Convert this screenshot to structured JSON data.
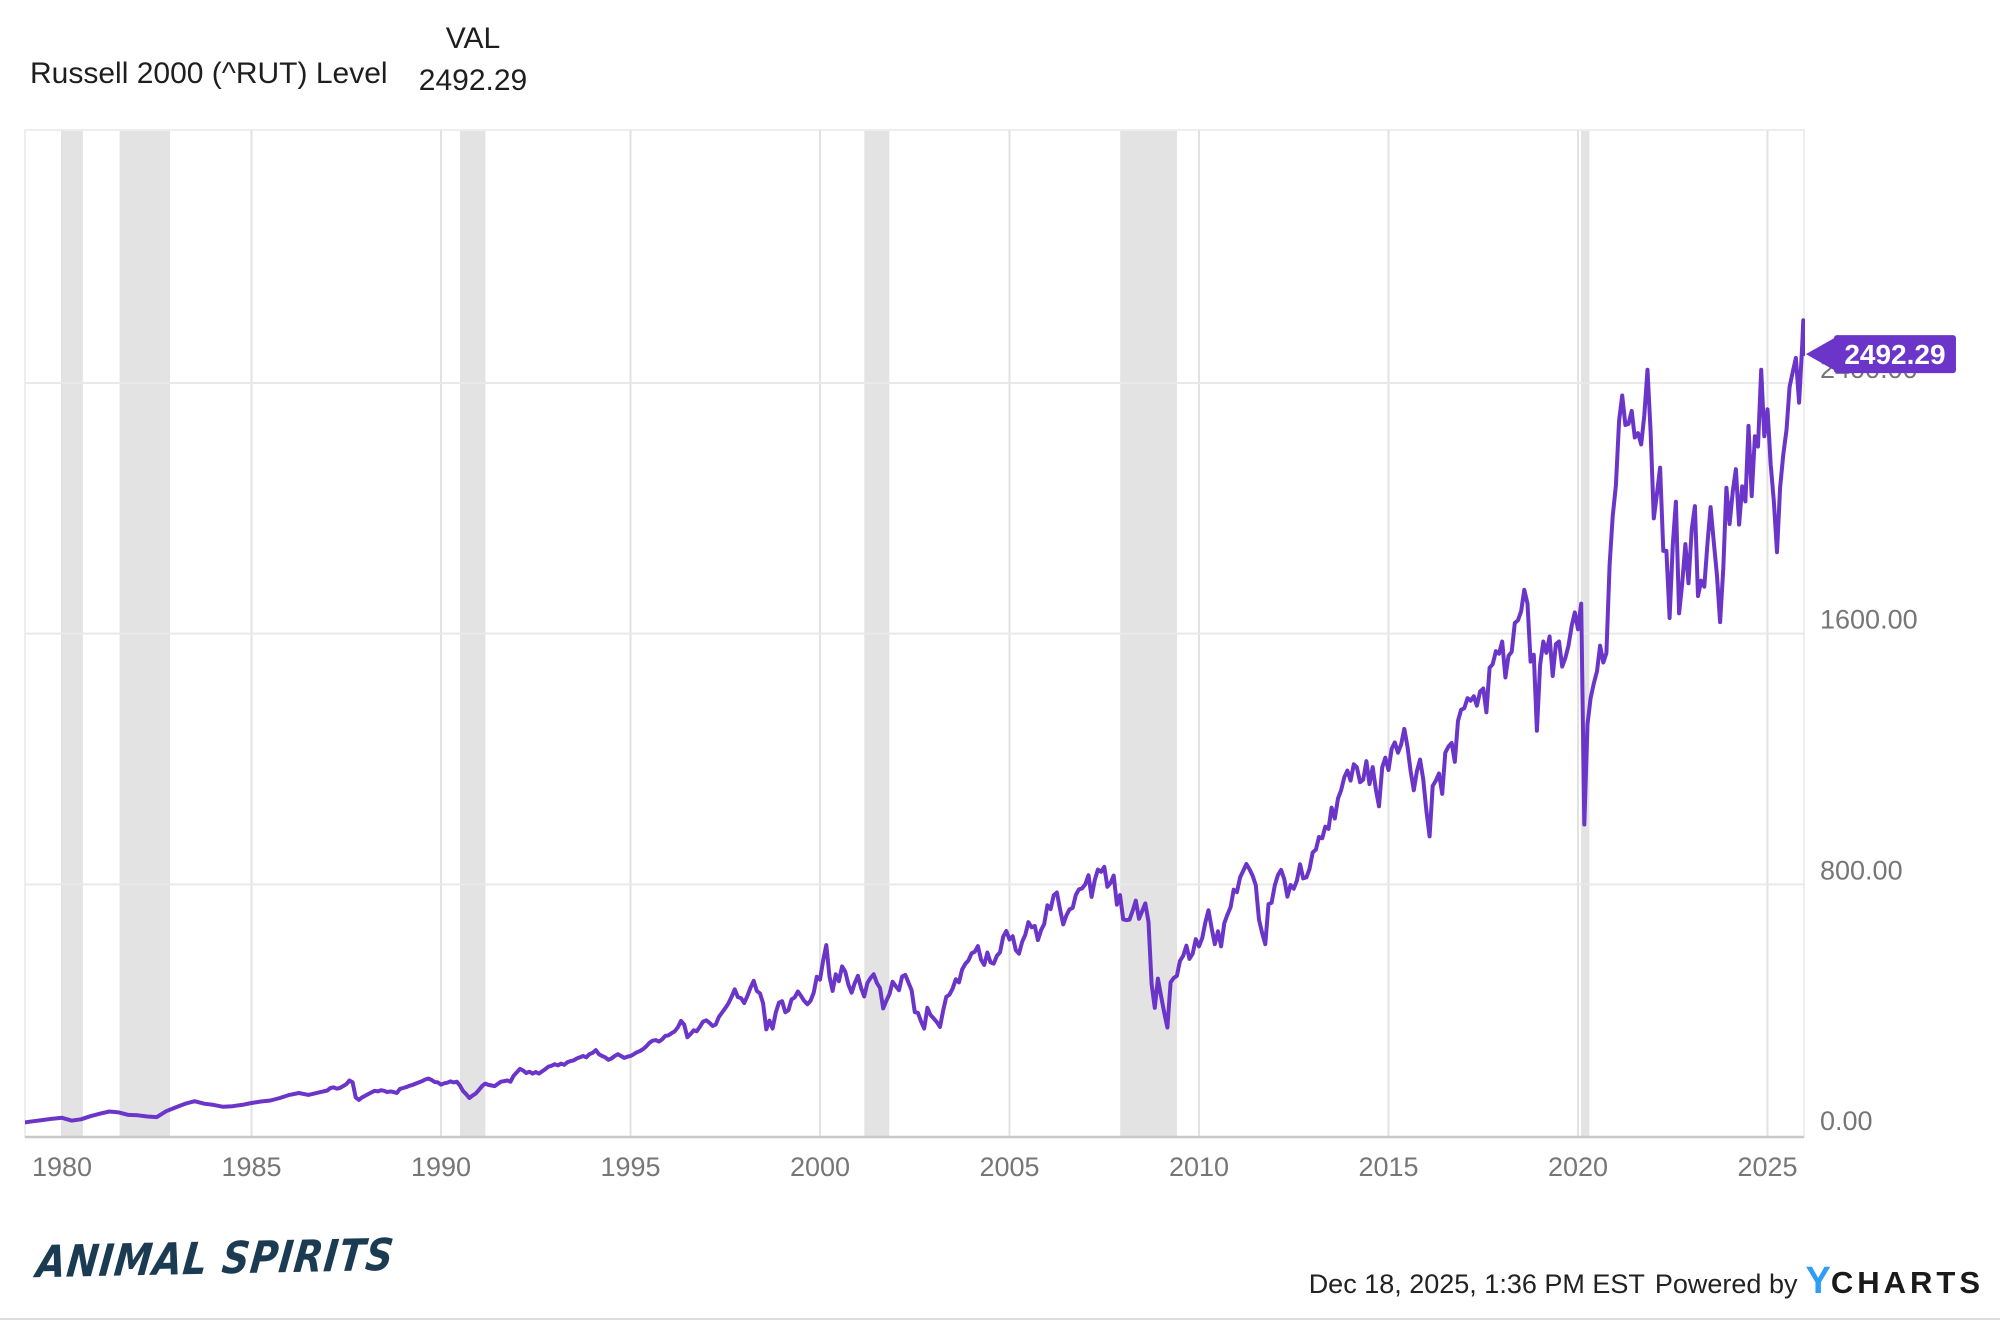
{
  "header": {
    "series_label": "Russell 2000 (^RUT) Level",
    "val_header": "VAL",
    "val_value": "2492.29"
  },
  "footer": {
    "brand": "ANIMAL SPIRITS",
    "timestamp": "Dec 18, 2025, 1:36 PM EST",
    "powered_by": "Powered by",
    "logo_y": "Y",
    "logo_charts": "CHARTS"
  },
  "chart_data": {
    "type": "line",
    "title": "Russell 2000 (^RUT) Level",
    "xlabel": "",
    "ylabel": "",
    "xlim": [
      1979,
      2026
    ],
    "ylim": [
      0,
      3207
    ],
    "grid": true,
    "legend_position": "none",
    "x_ticks": [
      1980,
      1985,
      1990,
      1995,
      2000,
      2005,
      2010,
      2015,
      2020,
      2025
    ],
    "y_ticks": [
      {
        "v": 0,
        "label": "0.00"
      },
      {
        "v": 800,
        "label": "800.00"
      },
      {
        "v": 1600,
        "label": "1600.00"
      },
      {
        "v": 2400,
        "label": "2400.00"
      }
    ],
    "last_value": 2492.29,
    "last_value_label": "2492.29",
    "recession_bands": [
      [
        1980.0,
        1980.55
      ],
      [
        1981.52,
        1982.85
      ],
      [
        1990.5,
        1991.17
      ],
      [
        2001.17,
        2001.83
      ],
      [
        2007.92,
        2009.42
      ],
      [
        2020.08,
        2020.3
      ]
    ],
    "colors": {
      "line": "#6A35C8",
      "badge": "#6A35C8",
      "badge_text": "#ffffff",
      "band": "#e3e3e3",
      "grid_vertical": "#e2e2e2",
      "grid_horizontal": "#e9e9e9",
      "axis_line": "#c9c9c9",
      "plot_border": "#e8e8e8",
      "tick_text": "#767676",
      "brand_navy": "#1b3b52",
      "ycharts_blue": "#2e9df3"
    },
    "series": {
      "name": "Russell 2000 (^RUT) Level",
      "quarterly_1979_1986": [
        40,
        44,
        48,
        52,
        55,
        46,
        50,
        60,
        68,
        75,
        72,
        64,
        63,
        59,
        57,
        76,
        88,
        100,
        108,
        100,
        96,
        90,
        92,
        96,
        102,
        107,
        110,
        118,
        128,
        134,
        128,
        135
      ],
      "monthly_1987_2025": [
        142,
        150,
        152,
        148,
        150,
        156,
        162,
        174,
        168,
        120,
        112,
        120,
        125,
        131,
        136,
        141,
        139,
        143,
        141,
        137,
        139,
        137,
        134,
        147,
        150,
        153,
        157,
        160,
        164,
        168,
        172,
        177,
        180,
        176,
        169,
        168,
        161,
        165,
        167,
        171,
        168,
        170,
        158,
        140,
        130,
        118,
        126,
        132,
        144,
        156,
        164,
        160,
        158,
        156,
        163,
        170,
        172,
        174,
        170,
        189,
        200,
        211,
        206,
        198,
        202,
        196,
        201,
        196,
        203,
        210,
        218,
        221,
        226,
        222,
        228,
        224,
        232,
        236,
        238,
        244,
        248,
        252,
        248,
        258,
        262,
        271,
        258,
        252,
        248,
        240,
        244,
        252,
        258,
        252,
        246,
        250,
        252,
        258,
        264,
        268,
        274,
        283,
        294,
        301,
        303,
        298,
        305,
        316,
        318,
        325,
        331,
        344,
        364,
        352,
        312,
        322,
        334,
        331,
        346,
        362,
        366,
        358,
        348,
        353,
        377,
        391,
        405,
        420,
        441,
        465,
        440,
        437,
        421,
        444,
        470,
        492,
        460,
        452,
        420,
        337,
        365,
        340,
        391,
        422,
        427,
        392,
        398,
        433,
        439,
        458,
        444,
        428,
        417,
        428,
        454,
        505,
        496,
        558,
        606,
        506,
        460,
        513,
        491,
        538,
        521,
        480,
        454,
        484,
        508,
        469,
        442,
        485,
        501,
        513,
        485,
        469,
        404,
        428,
        450,
        489,
        475,
        462,
        506,
        511,
        487,
        462,
        392,
        390,
        362,
        340,
        406,
        383,
        372,
        360,
        345,
        398,
        441,
        448,
        467,
        497,
        487,
        528,
        546,
        557,
        580,
        585,
        603,
        559,
        543,
        582,
        551,
        547,
        572,
        583,
        633,
        651,
        624,
        634,
        590,
        579,
        616,
        639,
        679,
        663,
        667,
        622,
        654,
        673,
        733,
        721,
        765,
        774,
        721,
        672,
        700,
        720,
        725,
        766,
        784,
        787,
        800,
        829,
        760,
        814,
        847,
        840,
        856,
        792,
        805,
        828,
        735,
        766,
        688,
        686,
        687,
        716,
        748,
        690,
        714,
        739,
        680,
        482,
        406,
        499,
        443,
        389,
        343,
        487,
        501,
        508,
        556,
        572,
        604,
        562,
        579,
        625,
        602,
        628,
        678,
        717,
        661,
        609,
        650,
        602,
        676,
        703,
        727,
        783,
        775,
        822,
        843,
        865,
        848,
        827,
        797,
        687,
        644,
        609,
        737,
        741,
        797,
        830,
        846,
        816,
        761,
        798,
        786,
        812,
        864,
        819,
        822,
        849,
        902,
        911,
        951,
        947,
        984,
        977,
        1045,
        1010,
        1074,
        1100,
        1142,
        1163,
        1131,
        1183,
        1173,
        1126,
        1134,
        1193,
        1120,
        1174,
        1102,
        1049,
        1173,
        1204,
        1165,
        1233,
        1253,
        1220,
        1246,
        1296,
        1239,
        1162,
        1100,
        1161,
        1198,
        1136,
        1035,
        953,
        1114,
        1131,
        1154,
        1089,
        1220,
        1240,
        1251,
        1191,
        1322,
        1357,
        1362,
        1394,
        1386,
        1400,
        1370,
        1415,
        1425,
        1349,
        1491,
        1503,
        1544,
        1536,
        1575,
        1460,
        1529,
        1542,
        1634,
        1643,
        1671,
        1740,
        1696,
        1511,
        1533,
        1290,
        1500,
        1575,
        1539,
        1591,
        1465,
        1567,
        1575,
        1495,
        1523,
        1562,
        1625,
        1668,
        1614,
        1696,
        991,
        1311,
        1394,
        1441,
        1480,
        1562,
        1508,
        1538,
        1819,
        1975,
        2073,
        2280,
        2360,
        2266,
        2269,
        2311,
        2226,
        2240,
        2204,
        2297,
        2442,
        2245,
        1968,
        2048,
        2130,
        1864,
        1864,
        1650,
        1885,
        2021,
        1665,
        1760,
        1886,
        1761,
        1932,
        2007,
        1720,
        1769,
        1750,
        1889,
        2004,
        1892,
        1785,
        1637,
        1809,
        2066,
        1950,
        2055,
        2125,
        1948,
        2070,
        2022,
        2263,
        2039,
        2230,
        2197,
        2442,
        2230,
        2316,
        2140,
        2024,
        1860,
        2066,
        2172,
        2250,
        2388,
        2436,
        2480,
        2337,
        2520
      ],
      "final_points": [
        [
          2025.945,
          2600
        ],
        [
          2025.962,
          2492.29
        ]
      ]
    }
  }
}
